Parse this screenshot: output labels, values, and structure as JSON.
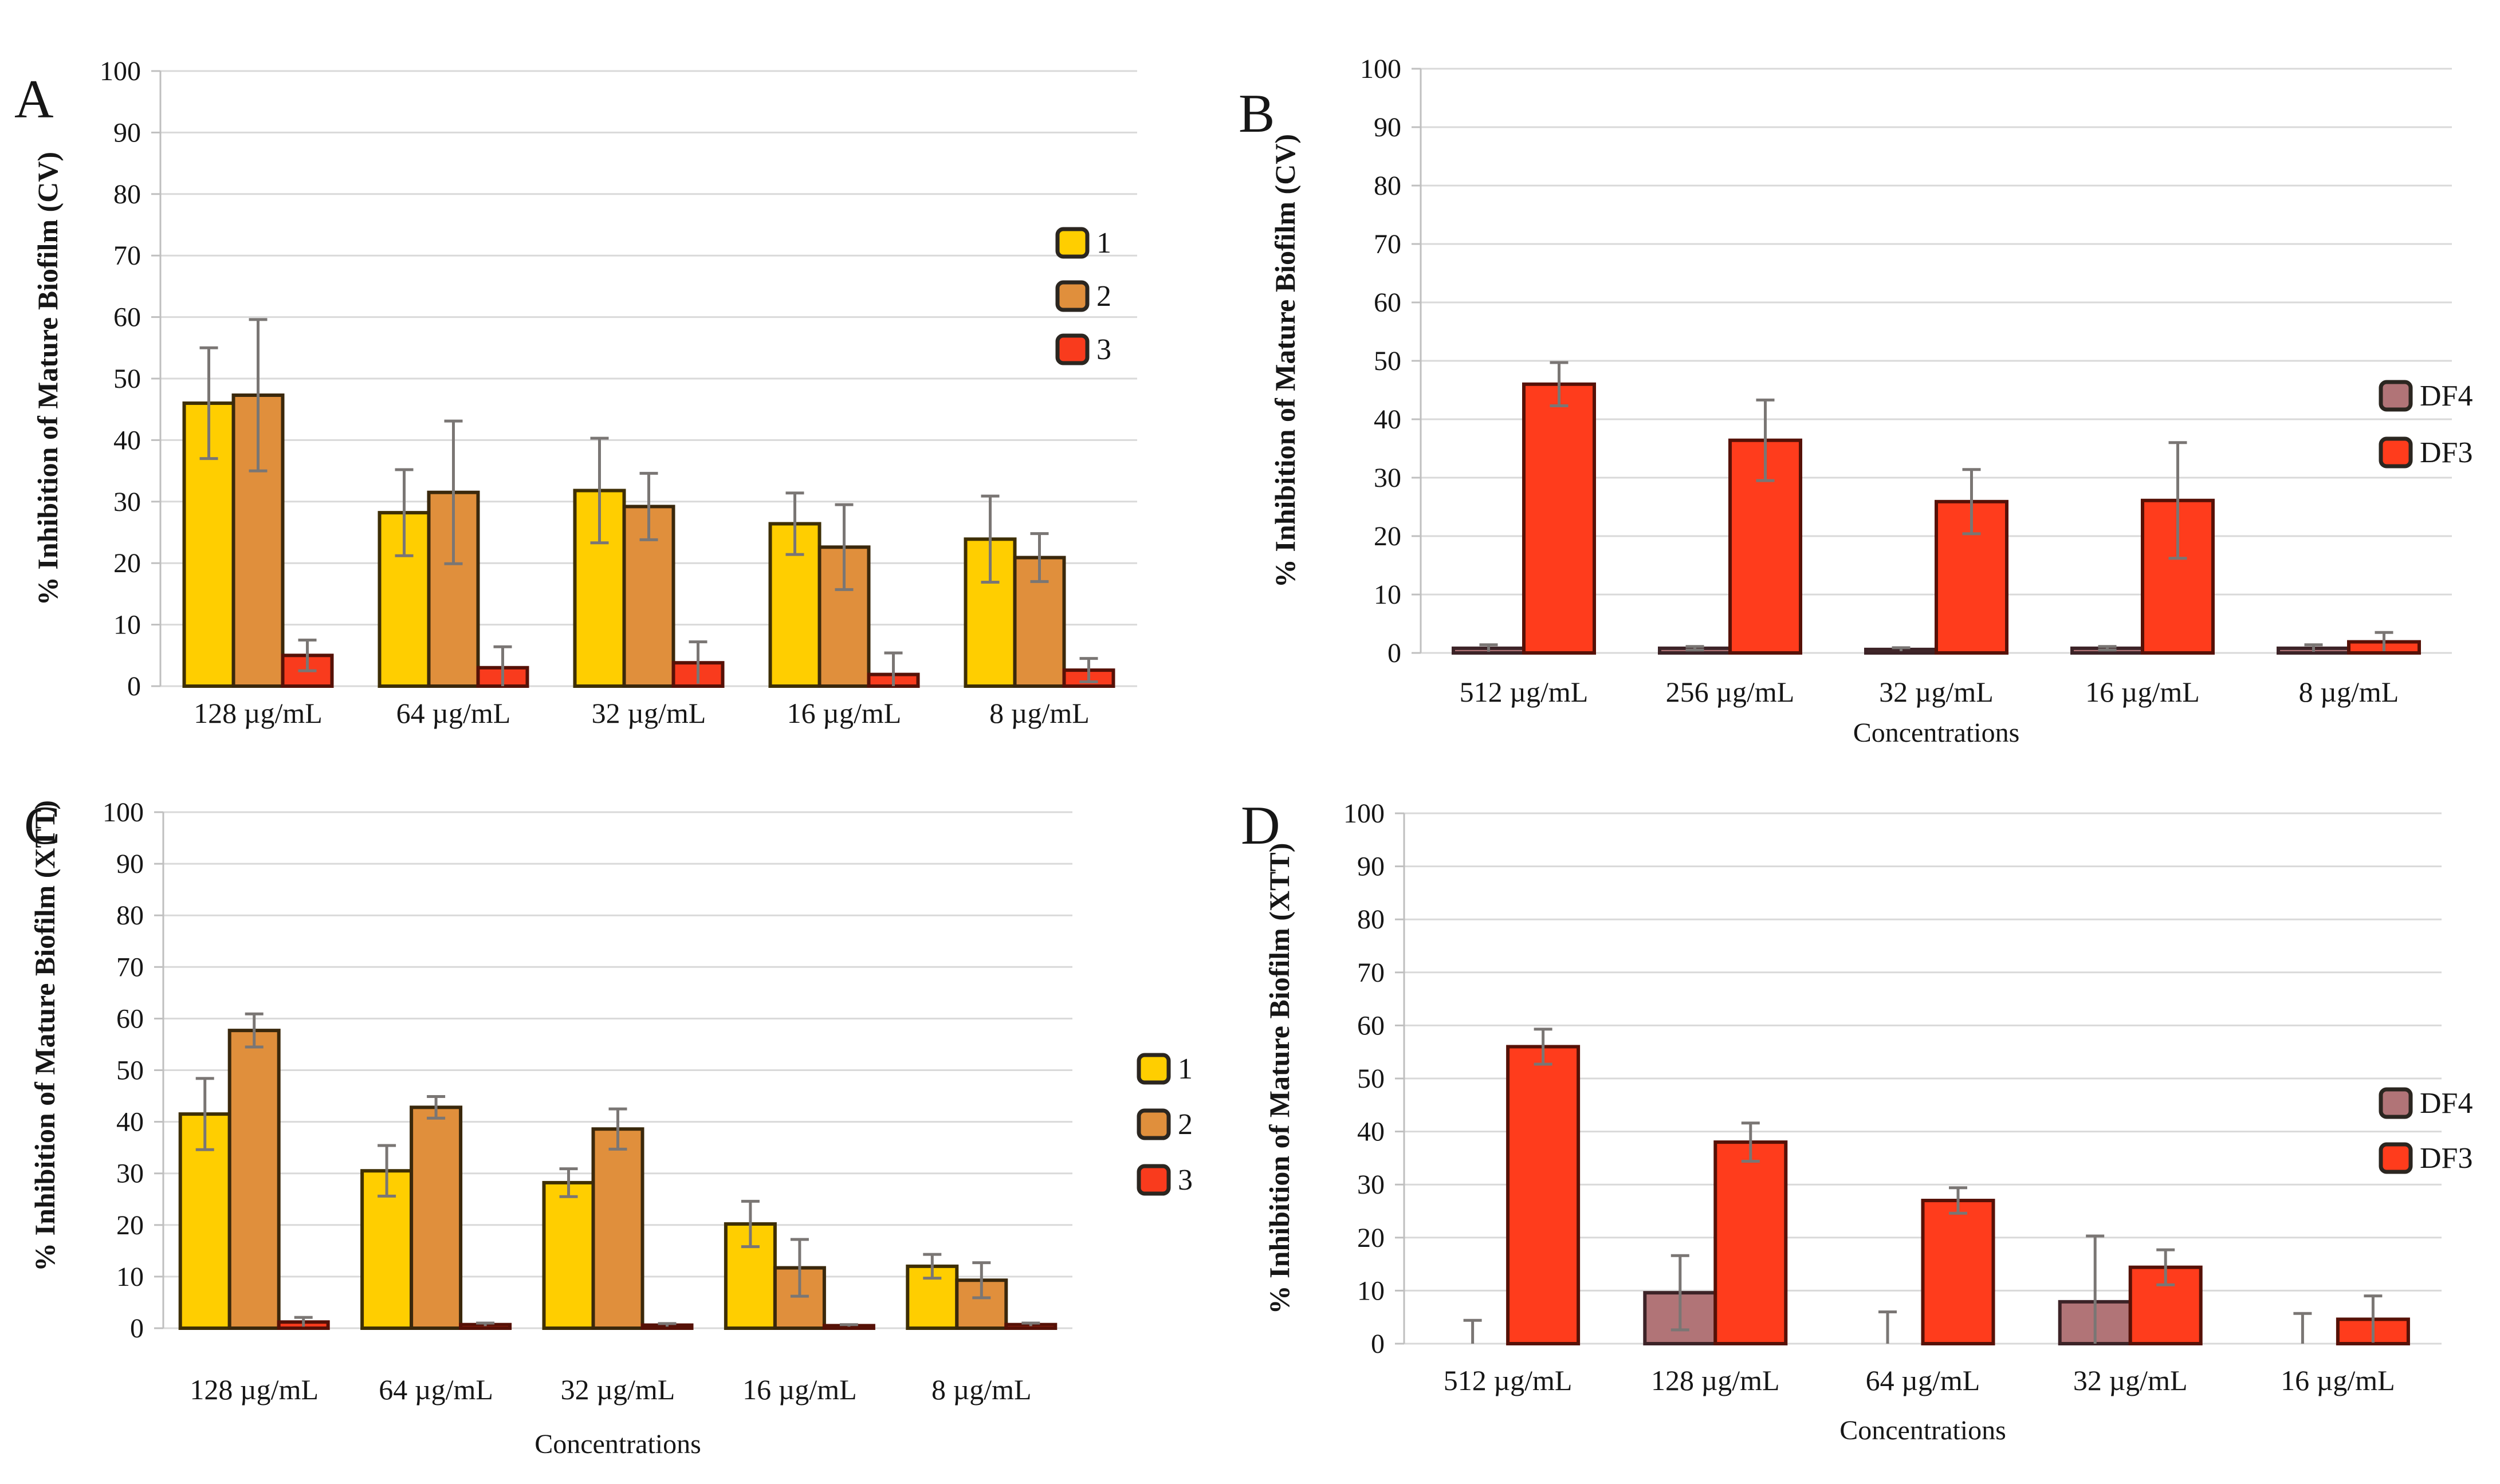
{
  "page": {
    "background": "#FFFFFF"
  },
  "styles": {
    "gridline_color": "#D9D9D9",
    "axis_color": "#BFBFBF",
    "error_bar_color": "#7A7674",
    "text_color": "#161616",
    "legend_border_color": "#2B2620"
  },
  "chart_data": [
    {
      "panel": "A",
      "type": "bar",
      "assay": "CV",
      "title": "",
      "ylabel": "% Inhibition of Mature Biofilm (CV)",
      "xlabel": "",
      "ylim": [
        0,
        100
      ],
      "ytick_step": 10,
      "grid": true,
      "legend_position": "inside-right",
      "categories": [
        "128 µg/mL",
        "64 µg/mL",
        "32 µg/mL",
        "16 µg/mL",
        "8 µg/mL"
      ],
      "series": [
        {
          "name": "1",
          "fill": "#FFCE00",
          "border": "#3E2F05",
          "values": [
            46.0,
            28.2,
            31.8,
            26.4,
            23.9
          ],
          "errors": [
            9.0,
            7.0,
            8.5,
            5.0,
            7.0
          ]
        },
        {
          "name": "2",
          "fill": "#E08F3C",
          "border": "#3A280C",
          "values": [
            47.3,
            31.5,
            29.2,
            22.6,
            20.9
          ],
          "errors": [
            12.3,
            11.6,
            5.4,
            6.9,
            3.9
          ]
        },
        {
          "name": "3",
          "fill": "#F93B1D",
          "border": "#561107",
          "values": [
            5.0,
            3.0,
            3.8,
            1.9,
            2.6
          ],
          "errors": [
            2.5,
            3.4,
            3.4,
            3.5,
            1.9
          ]
        }
      ]
    },
    {
      "panel": "B",
      "type": "bar",
      "assay": "CV",
      "title": "",
      "ylabel": "% Inhibition of Mature Biofilm (CV)",
      "xlabel": "Concentrations",
      "ylim": [
        0,
        100
      ],
      "ytick_step": 10,
      "grid": true,
      "legend_position": "inside-right",
      "categories": [
        "512 µg/mL",
        "256 µg/mL",
        "32 µg/mL",
        "16 µg/mL",
        "8 µg/mL"
      ],
      "series": [
        {
          "name": "DF4",
          "fill": "#B17477",
          "border": "#3C2327",
          "values": [
            0.8,
            0.8,
            0.6,
            0.8,
            0.8
          ],
          "errors": [
            0.6,
            0.3,
            0.3,
            0.3,
            0.6
          ]
        },
        {
          "name": "DF3",
          "fill": "#FF3C1C",
          "border": "#561107",
          "values": [
            46.0,
            36.4,
            25.9,
            26.1,
            1.9
          ],
          "errors": [
            3.7,
            6.9,
            5.5,
            9.9,
            1.6
          ]
        }
      ]
    },
    {
      "panel": "C",
      "type": "bar",
      "assay": "XTT",
      "title": "",
      "ylabel": "% Inhibition of Mature Biofilm (XTT)",
      "xlabel": "Concentrations",
      "ylim": [
        0,
        100
      ],
      "ytick_step": 10,
      "grid": true,
      "legend_position": "outside-right",
      "categories": [
        "128 µg/mL",
        "64 µg/mL",
        "32 µg/mL",
        "16 µg/mL",
        "8 µg/mL"
      ],
      "series": [
        {
          "name": "1",
          "fill": "#FFCE00",
          "border": "#3E2F05",
          "values": [
            41.5,
            30.5,
            28.2,
            20.2,
            12.0
          ],
          "errors": [
            6.9,
            4.9,
            2.7,
            4.4,
            2.3
          ]
        },
        {
          "name": "2",
          "fill": "#E08F3C",
          "border": "#3A280C",
          "values": [
            57.7,
            42.8,
            38.6,
            11.7,
            9.3
          ],
          "errors": [
            3.2,
            2.1,
            3.9,
            5.5,
            3.4
          ]
        },
        {
          "name": "3",
          "fill": "#F93B1D",
          "border": "#561107",
          "values": [
            1.2,
            0.7,
            0.6,
            0.5,
            0.7
          ],
          "errors": [
            0.9,
            0.3,
            0.3,
            0.2,
            0.3
          ]
        }
      ]
    },
    {
      "panel": "D",
      "type": "bar",
      "assay": "XTT",
      "title": "",
      "ylabel": "% Inhibition of Mature Biofilm (XTT)",
      "xlabel": "Concentrations",
      "ylim": [
        0,
        100
      ],
      "ytick_step": 10,
      "grid": true,
      "legend_position": "inside-right",
      "categories": [
        "512 µg/mL",
        "128 µg/mL",
        "64 µg/mL",
        "32 µg/mL",
        "16 µg/mL"
      ],
      "series": [
        {
          "name": "DF4",
          "fill": "#B17477",
          "border": "#3C2327",
          "values": [
            0.0,
            9.6,
            0.0,
            7.9,
            0.0
          ],
          "errors": [
            4.4,
            7.0,
            6.0,
            12.4,
            5.7
          ]
        },
        {
          "name": "DF3",
          "fill": "#FF3C1C",
          "border": "#561107",
          "values": [
            56.0,
            38.0,
            27.0,
            14.4,
            4.6
          ],
          "errors": [
            3.3,
            3.6,
            2.4,
            3.3,
            4.4
          ]
        }
      ]
    }
  ]
}
